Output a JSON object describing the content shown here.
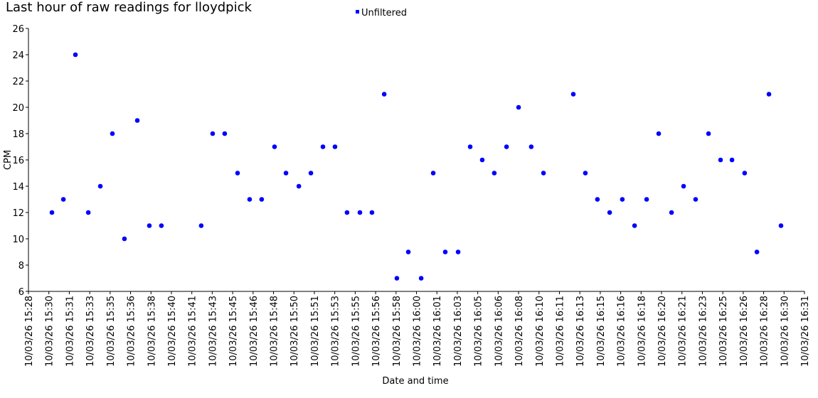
{
  "chart_data": {
    "type": "scatter",
    "title": "Last hour of raw readings for lloydpick",
    "xlabel": "Date and time",
    "ylabel": "CPM",
    "legend": "top",
    "series": [
      {
        "name": "Unfiltered",
        "color": "#0000ff",
        "x": [
          55815,
          55871,
          55930,
          55993,
          56052,
          56111,
          56170,
          56233,
          56292,
          56351,
          56546,
          56602,
          56661,
          56724,
          56783,
          56842,
          56905,
          56961,
          57024,
          57083,
          57142,
          57201,
          57260,
          57323,
          57382,
          57442,
          57504,
          57560,
          57623,
          57682,
          57741,
          57804,
          57863,
          57922,
          57981,
          58041,
          58100,
          58162,
          58222,
          58368,
          58427,
          58486,
          58546,
          58608,
          58668,
          58727,
          58786,
          58849,
          58908,
          58967,
          59030,
          59089,
          59145,
          59207,
          59267,
          59326,
          59385
        ],
        "values": [
          12,
          13,
          24,
          12,
          14,
          18,
          10,
          19,
          11,
          11,
          11,
          18,
          18,
          15,
          13,
          13,
          17,
          15,
          14,
          15,
          17,
          17,
          12,
          12,
          12,
          21,
          7,
          9,
          7,
          15,
          9,
          9,
          17,
          16,
          15,
          17,
          20,
          17,
          15,
          21,
          15,
          13,
          12,
          13,
          11,
          13,
          18,
          12,
          14,
          13,
          18,
          16,
          16,
          15,
          9,
          21,
          11
        ]
      }
    ],
    "xlim": [
      55700,
      59500
    ],
    "xticks": [
      {
        "value": 55700,
        "label": "10/03/26 15:28"
      },
      {
        "value": 55800,
        "label": "10/03/26 15:30"
      },
      {
        "value": 55900,
        "label": "10/03/26 15:31"
      },
      {
        "value": 56000,
        "label": "10/03/26 15:33"
      },
      {
        "value": 56100,
        "label": "10/03/26 15:35"
      },
      {
        "value": 56200,
        "label": "10/03/26 15:36"
      },
      {
        "value": 56300,
        "label": "10/03/26 15:38"
      },
      {
        "value": 56400,
        "label": "10/03/26 15:40"
      },
      {
        "value": 56500,
        "label": "10/03/26 15:41"
      },
      {
        "value": 56600,
        "label": "10/03/26 15:43"
      },
      {
        "value": 56700,
        "label": "10/03/26 15:45"
      },
      {
        "value": 56800,
        "label": "10/03/26 15:46"
      },
      {
        "value": 56900,
        "label": "10/03/26 15:48"
      },
      {
        "value": 57000,
        "label": "10/03/26 15:50"
      },
      {
        "value": 57100,
        "label": "10/03/26 15:51"
      },
      {
        "value": 57200,
        "label": "10/03/26 15:53"
      },
      {
        "value": 57300,
        "label": "10/03/26 15:55"
      },
      {
        "value": 57400,
        "label": "10/03/26 15:56"
      },
      {
        "value": 57500,
        "label": "10/03/26 15:58"
      },
      {
        "value": 57600,
        "label": "10/03/26 16:00"
      },
      {
        "value": 57700,
        "label": "10/03/26 16:01"
      },
      {
        "value": 57800,
        "label": "10/03/26 16:03"
      },
      {
        "value": 57900,
        "label": "10/03/26 16:05"
      },
      {
        "value": 58000,
        "label": "10/03/26 16:06"
      },
      {
        "value": 58100,
        "label": "10/03/26 16:08"
      },
      {
        "value": 58200,
        "label": "10/03/26 16:10"
      },
      {
        "value": 58300,
        "label": "10/03/26 16:11"
      },
      {
        "value": 58400,
        "label": "10/03/26 16:13"
      },
      {
        "value": 58500,
        "label": "10/03/26 16:15"
      },
      {
        "value": 58600,
        "label": "10/03/26 16:16"
      },
      {
        "value": 58700,
        "label": "10/03/26 16:18"
      },
      {
        "value": 58800,
        "label": "10/03/26 16:20"
      },
      {
        "value": 58900,
        "label": "10/03/26 16:21"
      },
      {
        "value": 59000,
        "label": "10/03/26 16:23"
      },
      {
        "value": 59100,
        "label": "10/03/26 16:25"
      },
      {
        "value": 59200,
        "label": "10/03/26 16:26"
      },
      {
        "value": 59300,
        "label": "10/03/26 16:28"
      },
      {
        "value": 59400,
        "label": "10/03/26 16:30"
      },
      {
        "value": 59500,
        "label": "10/03/26 16:31"
      }
    ],
    "ylim": [
      6,
      26
    ],
    "yticks": [
      6,
      8,
      10,
      12,
      14,
      16,
      18,
      20,
      22,
      24,
      26
    ],
    "grid": false
  }
}
